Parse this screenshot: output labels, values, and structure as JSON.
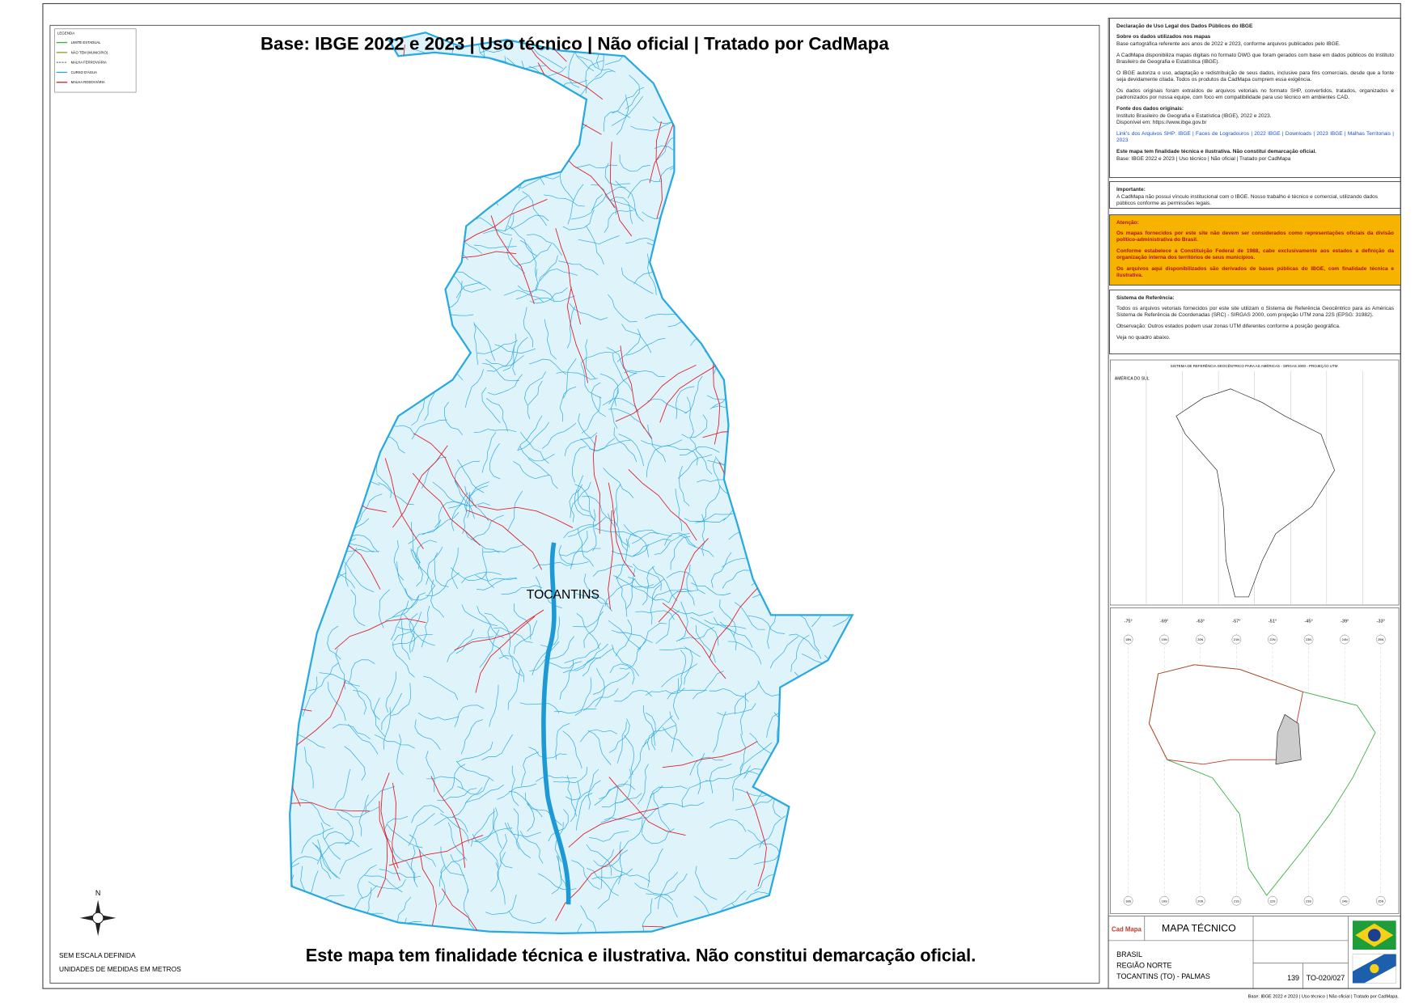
{
  "header": {
    "title": "Base: IBGE 2022 e 2023 | Uso técnico | Não oficial | Tratado por CadMapa"
  },
  "legend": {
    "heading": "LEGENDA",
    "items": [
      {
        "label": "LIMITE ESTADUAL",
        "color": "#3cb043"
      },
      {
        "label": "NÃO TEM (MUNICÍPIO)",
        "color": "#9a9a2a"
      },
      {
        "label": "MALHA FERROVIÁRIA",
        "color": "#888888"
      },
      {
        "label": "CURSO D'ÁGUA",
        "color": "#27a9e1"
      },
      {
        "label": "MALHA RODOVIÁRIA",
        "color": "#e0202a"
      }
    ]
  },
  "map": {
    "label": "TOCANTINS",
    "north": "N",
    "notes": [
      "SEM ESCALA DEFINIDA",
      "UNIDADES DE MEDIDAS EM METROS"
    ],
    "disclaimer": "Este mapa tem finalidade técnica e ilustrativa. Não constitui demarcação oficial."
  },
  "panel": {
    "declaration": {
      "heading": "Declaração de Uso Legal dos Dados Públicos do IBGE",
      "subheading": "Sobre os dados utilizados nos mapas",
      "paragraphs": [
        "Base cartográfica referente aos anos de 2022 e 2023, conforme arquivos publicados pelo IBGE.",
        "A CadMapa disponibiliza mapas digitais no formato DWG que foram gerados com base em dados públicos do Instituto Brasileiro de Geografia e Estatística (IBGE).",
        "O IBGE autoriza o uso, adaptação e redistribuição de seus dados, inclusive para fins comerciais, desde que a fonte seja devidamente citada. Todos os produtos da CadMapa cumprem essa exigência.",
        "Os dados originais foram extraídos de arquivos vetoriais no formato SHP, convertidos, tratados, organizados e padronizados por nossa equipe, com foco em compatibilidade para uso técnico em ambientes CAD."
      ],
      "source_heading": "Fonte dos dados originais:",
      "source": "Instituto Brasileiro de Geografia e Estatística (IBGE), 2022 e 2023.",
      "available": "Disponível em: https://www.ibge.gov.br",
      "links": "Link's dos Arquivos SHP: IBGE | Faces de Logradouros | 2022   IBGE | Downloads | 2023   IBGE | Malhas Territoriais | 2023",
      "note_bold": "Este mapa tem finalidade técnica e ilustrativa. Não constitui demarcação oficial.",
      "note": "Base: IBGE 2022 e 2023 | Uso técnico | Não oficial | Tratado por CadMapa"
    },
    "important": {
      "heading": "Importante:",
      "text": "A CadMapa não possui vínculo institucional com o IBGE. Nosso trabalho é técnico e comercial, utilizando dados públicos conforme as permissões legais."
    },
    "attention": {
      "heading": "Atenção:",
      "paragraphs": [
        "Os mapas fornecidos por este site não devem ser considerados como representações oficiais da divisão político-administrativa do Brasil.",
        "Conforme estabelece a Constituição Federal de 1988, cabe exclusivamente aos estados a definição da organização interna dos territórios de seus municípios.",
        "Os arquivos aqui disponibilizados são derivados de bases públicas do IBGE, com finalidade técnica e ilustrativa."
      ]
    },
    "reference": {
      "heading": "Sistema de Referência:",
      "paragraphs": [
        "Todos os arquivos vetoriais fornecidos por este site utilizam o Sistema de Referência Geocêntrico para as Américas Sistema de Referência de Coordenadas (SRC) - SIRGAS 2000, com projeção UTM zona 22S (EPSG: 31982).",
        "Observação: Outros estados podem usar zonas UTM diferentes conforme a posição geográfica.",
        "Veja no quadro abaixo."
      ]
    },
    "inset": {
      "title": "SISTEMA DE REFERÊNCIA GEOCÊNTRICO PARA AS AMÉRICAS - SIRGAS 2000 - PROJEÇÃO UTM",
      "continent": "AMÉRICA DO SUL",
      "meridians": [
        "-75°",
        "-69°",
        "-63°",
        "-57°",
        "-51°",
        "-45°",
        "-39°",
        "-33°"
      ],
      "zones_top": [
        "18N",
        "19N",
        "20N",
        "21N",
        "22N",
        "23N",
        "24N",
        "25N"
      ],
      "zones_bottom": [
        "18S",
        "19S",
        "20S",
        "21S",
        "22S",
        "23S",
        "24S",
        "25S"
      ]
    }
  },
  "title_block": {
    "logo": "Cad Mapa",
    "heading": "MAPA TÉCNICO",
    "lines": [
      "BRASIL",
      "REGIÃO NORTE",
      "TOCANTINS (TO) - PALMAS"
    ],
    "page": "139",
    "code": "TO-020/027"
  },
  "footer": "Base: IBGE 2022 e 2023 | Uso técnico | Não oficial | Tratado por CadMapa."
}
